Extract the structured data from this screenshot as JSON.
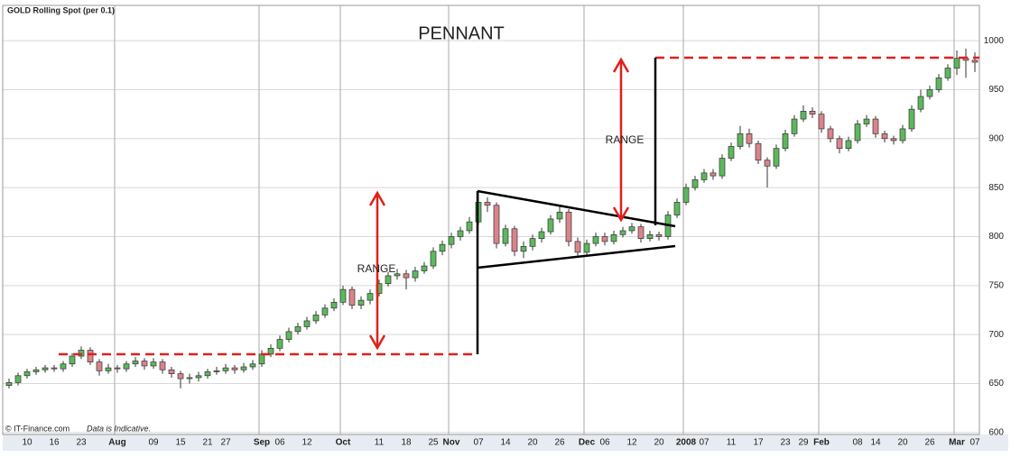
{
  "chart_data": {
    "type": "candlestick",
    "title": "GOLD Rolling Spot (per 0.1)",
    "annotations": {
      "pattern": "PENNANT",
      "range_left": "RANGE",
      "range_right": "RANGE",
      "source": "© IT-Finance.com",
      "note": "Data is Indicative."
    },
    "categories": [
      null,
      null,
      "10",
      null,
      null,
      "16",
      null,
      null,
      "23",
      null,
      null,
      null,
      "Aug",
      null,
      null,
      null,
      "09",
      null,
      null,
      "15",
      null,
      null,
      "21",
      null,
      "27",
      null,
      null,
      null,
      "Sep",
      null,
      "06",
      null,
      null,
      "12",
      null,
      null,
      null,
      "Oct",
      null,
      null,
      null,
      "11",
      null,
      null,
      "18",
      null,
      null,
      "25",
      null,
      "Nov",
      null,
      null,
      "07",
      null,
      null,
      "14",
      null,
      null,
      "20",
      null,
      null,
      "26",
      null,
      null,
      "Dec",
      null,
      "06",
      null,
      null,
      "12",
      null,
      null,
      "20",
      null,
      null,
      "2008",
      null,
      "07",
      null,
      null,
      "11",
      null,
      null,
      "17",
      null,
      null,
      "23",
      null,
      "29",
      null,
      "Feb",
      null,
      null,
      null,
      "08",
      null,
      "14",
      null,
      null,
      "20",
      null,
      null,
      "26",
      null,
      null,
      "Mar",
      null,
      "07"
    ],
    "open": [
      648,
      651,
      658,
      662,
      664,
      666,
      665,
      670,
      678,
      684,
      672,
      663,
      666,
      665,
      670,
      673,
      668,
      672,
      664,
      660,
      655,
      656,
      658,
      662,
      663,
      666,
      664,
      667,
      670,
      680,
      686,
      695,
      703,
      708,
      714,
      720,
      727,
      733,
      746,
      730,
      735,
      742,
      752,
      760,
      762,
      758,
      765,
      770,
      785,
      792,
      800,
      806,
      815,
      835,
      832,
      793,
      808,
      785,
      790,
      798,
      805,
      818,
      825,
      795,
      784,
      793,
      800,
      795,
      802,
      806,
      810,
      798,
      802,
      800,
      822,
      835,
      850,
      858,
      865,
      862,
      880,
      892,
      905,
      895,
      878,
      872,
      890,
      905,
      920,
      928,
      925,
      910,
      900,
      890,
      898,
      915,
      920,
      905,
      900,
      898,
      910,
      930,
      943,
      950,
      962,
      972,
      982,
      980
    ],
    "high": [
      655,
      661,
      665,
      667,
      669,
      669,
      673,
      681,
      688,
      687,
      675,
      670,
      669,
      673,
      677,
      676,
      676,
      675,
      667,
      663,
      660,
      662,
      665,
      667,
      670,
      669,
      671,
      674,
      684,
      690,
      699,
      707,
      712,
      718,
      724,
      731,
      737,
      750,
      749,
      739,
      746,
      756,
      764,
      767,
      766,
      769,
      774,
      789,
      796,
      804,
      810,
      820,
      845,
      840,
      835,
      812,
      811,
      795,
      802,
      809,
      822,
      832,
      828,
      799,
      797,
      804,
      804,
      806,
      810,
      814,
      813,
      806,
      805,
      826,
      839,
      854,
      862,
      869,
      869,
      884,
      896,
      913,
      910,
      898,
      881,
      894,
      909,
      924,
      934,
      932,
      928,
      913,
      903,
      902,
      919,
      924,
      923,
      908,
      903,
      914,
      934,
      950,
      954,
      966,
      976,
      990,
      992,
      988
    ],
    "low": [
      645,
      648,
      655,
      659,
      661,
      662,
      662,
      667,
      675,
      669,
      658,
      660,
      661,
      662,
      667,
      664,
      665,
      660,
      656,
      645,
      650,
      652,
      655,
      659,
      660,
      660,
      661,
      664,
      667,
      677,
      683,
      692,
      700,
      705,
      711,
      717,
      724,
      730,
      726,
      726,
      731,
      739,
      749,
      756,
      746,
      754,
      762,
      767,
      781,
      788,
      796,
      803,
      812,
      825,
      788,
      790,
      780,
      778,
      786,
      794,
      802,
      814,
      790,
      779,
      781,
      790,
      791,
      792,
      799,
      803,
      794,
      795,
      796,
      797,
      819,
      832,
      847,
      855,
      858,
      859,
      877,
      889,
      891,
      874,
      850,
      869,
      887,
      902,
      917,
      921,
      906,
      896,
      885,
      887,
      895,
      912,
      901,
      896,
      894,
      895,
      907,
      927,
      940,
      947,
      959,
      965,
      962,
      968
    ],
    "close": [
      651,
      658,
      662,
      664,
      666,
      665,
      670,
      678,
      684,
      672,
      663,
      666,
      665,
      670,
      673,
      668,
      672,
      664,
      660,
      655,
      656,
      658,
      662,
      663,
      666,
      664,
      667,
      670,
      680,
      686,
      695,
      703,
      708,
      714,
      720,
      727,
      733,
      746,
      730,
      735,
      742,
      752,
      760,
      762,
      758,
      765,
      770,
      785,
      792,
      800,
      806,
      815,
      835,
      832,
      793,
      808,
      785,
      790,
      798,
      805,
      818,
      825,
      795,
      784,
      793,
      800,
      795,
      802,
      806,
      810,
      798,
      802,
      800,
      822,
      835,
      850,
      858,
      865,
      862,
      880,
      892,
      905,
      895,
      878,
      872,
      890,
      905,
      920,
      928,
      925,
      910,
      900,
      890,
      898,
      915,
      920,
      905,
      900,
      898,
      910,
      930,
      943,
      950,
      962,
      972,
      982,
      980,
      978
    ],
    "up_color": "#5cb85c",
    "down_color": "#d9848c",
    "ylim": [
      598,
      1036
    ],
    "yticks": [
      600,
      650,
      700,
      750,
      800,
      850,
      900,
      950,
      1000
    ],
    "grid": true
  }
}
